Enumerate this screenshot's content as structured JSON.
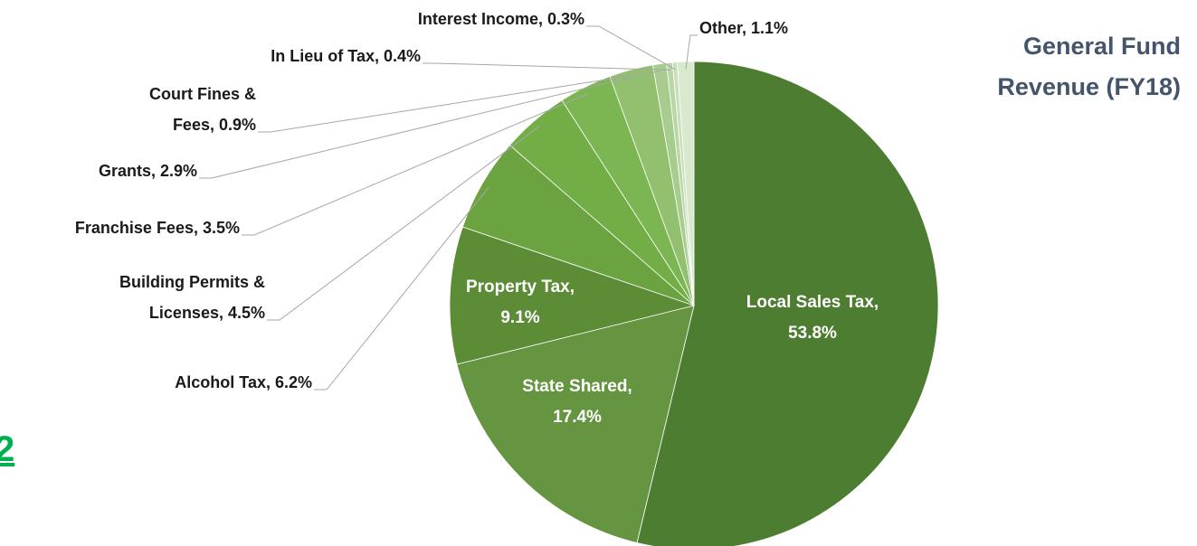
{
  "chart_data": {
    "type": "pie",
    "title": [
      "General Fund",
      "Revenue (FY18)"
    ],
    "labels": [
      [
        "Local Sales Tax,",
        "53.8%"
      ],
      [
        "State Shared,",
        "17.4%"
      ],
      [
        "Property Tax,",
        "9.1%"
      ],
      [
        "Alcohol Tax, 6.2%"
      ],
      [
        "Building Permits &",
        "Licenses, 4.5%"
      ],
      [
        "Franchise Fees, 3.5%"
      ],
      [
        "Grants, 2.9%"
      ],
      [
        "Court Fines &",
        "Fees, 0.9%"
      ],
      [
        "In Lieu of Tax, 0.4%"
      ],
      [
        "Interest Income, 0.3%"
      ],
      [
        "Other, 1.1%"
      ]
    ],
    "values": [
      53.8,
      17.4,
      9.1,
      6.2,
      4.5,
      3.5,
      2.9,
      0.9,
      0.4,
      0.3,
      1.1
    ],
    "colors": [
      "#4d7d30",
      "#659540",
      "#5d8c36",
      "#6aa33f",
      "#72ad46",
      "#7bb653",
      "#92c06f",
      "#a7cc8d",
      "#b9d7a6",
      "#c8e0b9",
      "#d9e9ce"
    ]
  },
  "page_number": "2"
}
